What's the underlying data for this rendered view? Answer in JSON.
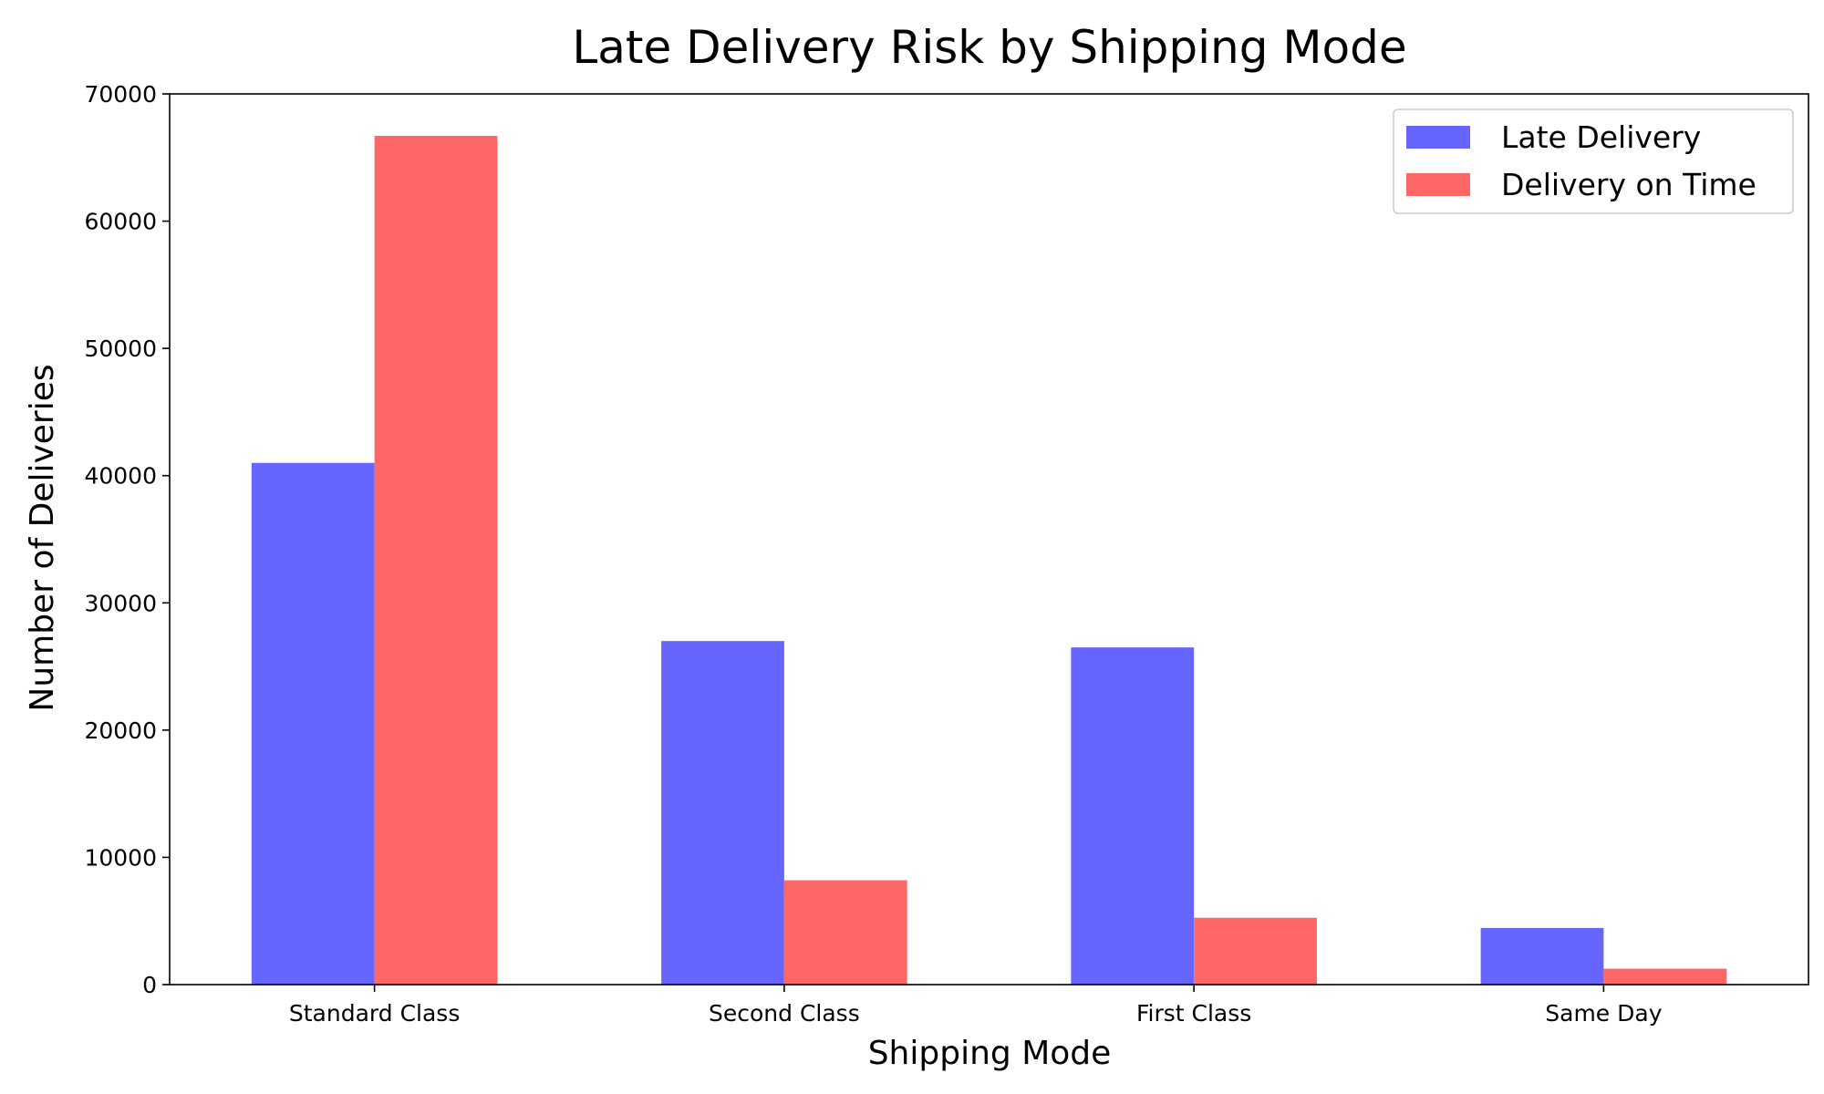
{
  "chart_data": {
    "type": "bar",
    "title": "Late Delivery Risk by Shipping Mode",
    "xlabel": "Shipping Mode",
    "ylabel": "Number of Deliveries",
    "categories": [
      "Standard Class",
      "Second Class",
      "First Class",
      "Same Day"
    ],
    "series": [
      {
        "name": "Late Delivery",
        "color": "#6666ff",
        "values": [
          41000,
          27000,
          26500,
          4450
        ]
      },
      {
        "name": "Delivery on Time",
        "color": "#ff6666",
        "values": [
          66700,
          8200,
          5250,
          1250
        ]
      }
    ],
    "ylim": [
      0,
      70000
    ],
    "yticks": [
      0,
      10000,
      20000,
      30000,
      40000,
      50000,
      60000,
      70000
    ],
    "ytick_labels": [
      "0",
      "10000",
      "20000",
      "30000",
      "40000",
      "50000",
      "60000",
      "70000"
    ],
    "grid": false,
    "legend_position": "top-right"
  }
}
